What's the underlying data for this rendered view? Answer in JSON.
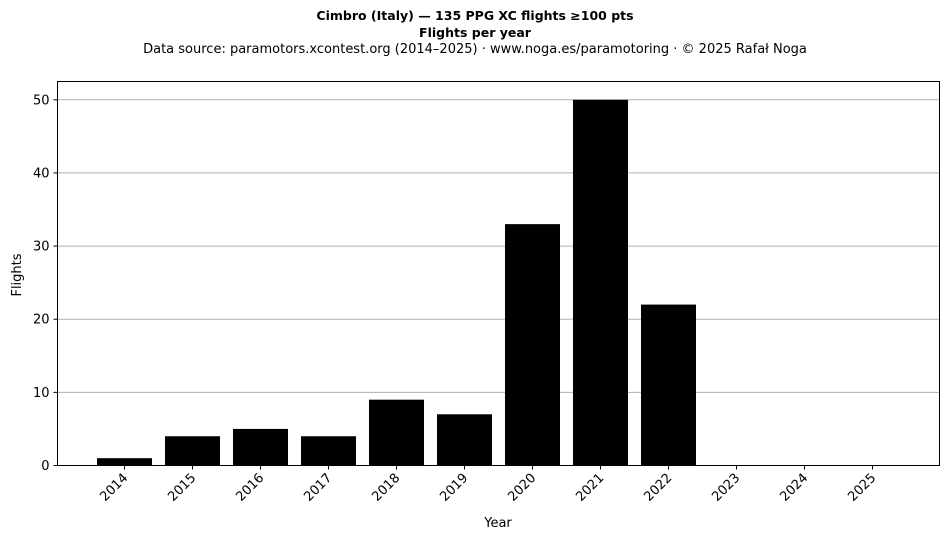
{
  "chart_data": {
    "type": "bar",
    "title": "Cimbro (Italy)  —  135 PPG XC flights ≥100 pts",
    "subtitle": "Flights per year",
    "source_note": "Data source: paramotors.xcontest.org (2014–2025)  ·  www.noga.es/paramotoring  ·  © 2025 Rafał Noga",
    "xlabel": "Year",
    "ylabel": "Flights",
    "categories": [
      "2014",
      "2015",
      "2016",
      "2017",
      "2018",
      "2019",
      "2020",
      "2021",
      "2022",
      "2023",
      "2024",
      "2025"
    ],
    "values": [
      1,
      4,
      5,
      4,
      9,
      7,
      33,
      50,
      22,
      0,
      0,
      0
    ],
    "ylim": [
      0,
      52.5
    ],
    "yticks": [
      0,
      10,
      20,
      30,
      40,
      50
    ],
    "grid": "y",
    "bar_color": "#000000",
    "grid_color": "#b0b0b0"
  }
}
